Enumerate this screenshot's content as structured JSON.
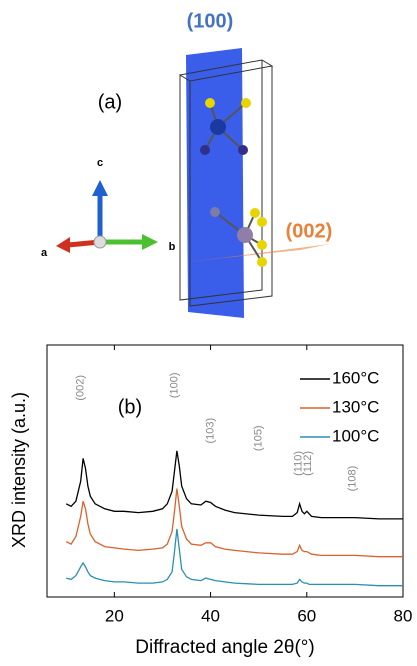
{
  "panel_a": {
    "plane_100_label": "(100)",
    "panel_label": "(a)",
    "axis_c": "c",
    "axis_a": "a",
    "axis_b": "b",
    "plane_002_label": "(002)"
  },
  "chart_data": {
    "type": "line",
    "panel_label": "(b)",
    "xlabel": "Diffracted angle 2θ(°)",
    "ylabel": "XRD intensity (a.u.)",
    "xlim": [
      6,
      80
    ],
    "xticks": [
      20,
      40,
      60,
      80
    ],
    "ylim": [
      0,
      10
    ],
    "legend": "upper right",
    "x": [
      10,
      11,
      12,
      13,
      13.5,
      14,
      14.5,
      15,
      16,
      18,
      20,
      22,
      25,
      28,
      30,
      31,
      32,
      32.5,
      33,
      33.5,
      34,
      35,
      36,
      38,
      39,
      40,
      41,
      43,
      45,
      50,
      55,
      57,
      58,
      58.5,
      59,
      59.5,
      60,
      60.5,
      61,
      63,
      65,
      70,
      75,
      80
    ],
    "series": [
      {
        "name": "160°C",
        "color": "#000000",
        "values": [
          3.7,
          3.6,
          3.8,
          4.6,
          5.5,
          5.1,
          4.4,
          4.0,
          3.7,
          3.5,
          3.4,
          3.4,
          3.35,
          3.4,
          3.5,
          3.7,
          4.2,
          5.0,
          5.8,
          5.2,
          4.4,
          3.9,
          3.7,
          3.65,
          3.8,
          3.75,
          3.6,
          3.45,
          3.35,
          3.25,
          3.2,
          3.2,
          3.35,
          3.7,
          3.4,
          3.3,
          3.4,
          3.3,
          3.2,
          3.15,
          3.15,
          3.15,
          3.1,
          3.1
        ]
      },
      {
        "name": "130°C",
        "color": "#d9622b",
        "values": [
          2.2,
          2.1,
          2.4,
          3.2,
          3.8,
          3.5,
          2.9,
          2.5,
          2.2,
          2.0,
          1.95,
          1.9,
          1.85,
          1.9,
          1.95,
          2.1,
          2.6,
          3.4,
          4.3,
          3.6,
          2.8,
          2.3,
          2.1,
          2.05,
          2.15,
          2.15,
          2.0,
          1.9,
          1.85,
          1.75,
          1.7,
          1.7,
          1.8,
          2.05,
          1.85,
          1.8,
          1.8,
          1.75,
          1.7,
          1.65,
          1.65,
          1.65,
          1.6,
          1.6
        ]
      },
      {
        "name": "100°C",
        "color": "#2a8fb0",
        "values": [
          0.75,
          0.7,
          0.85,
          1.2,
          1.35,
          1.2,
          1.0,
          0.85,
          0.75,
          0.65,
          0.6,
          0.6,
          0.55,
          0.55,
          0.6,
          0.7,
          1.0,
          1.8,
          2.7,
          1.9,
          1.1,
          0.8,
          0.7,
          0.65,
          0.75,
          0.7,
          0.65,
          0.6,
          0.55,
          0.5,
          0.5,
          0.5,
          0.55,
          0.7,
          0.6,
          0.55,
          0.55,
          0.5,
          0.5,
          0.5,
          0.5,
          0.5,
          0.45,
          0.45
        ]
      }
    ],
    "annotations": [
      {
        "text": "(002)",
        "x": 13,
        "y": 8.3
      },
      {
        "text": "(100)",
        "x": 32.5,
        "y": 8.4
      },
      {
        "text": "(103)",
        "x": 40,
        "y": 6.6
      },
      {
        "text": "(105)",
        "x": 50,
        "y": 6.3
      },
      {
        "text": "(110)",
        "x": 58.3,
        "y": 5.3
      },
      {
        "text": "(112)",
        "x": 60.3,
        "y": 5.3
      },
      {
        "text": "(108)",
        "x": 69.5,
        "y": 4.7
      }
    ]
  }
}
